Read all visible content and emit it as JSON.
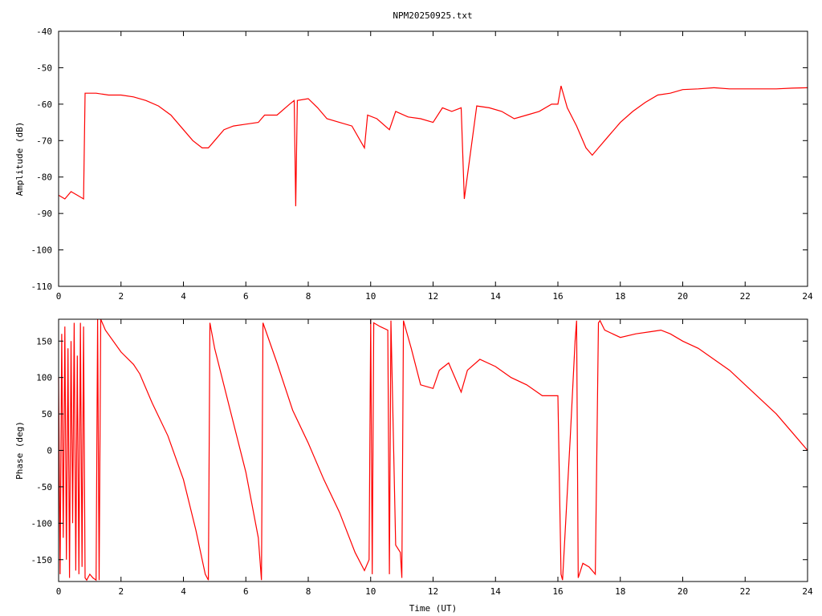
{
  "title": "NPM20250925.txt",
  "colors": {
    "trace": "#ff0000",
    "axes": "#000000",
    "background": "#ffffff"
  },
  "chart_data": [
    {
      "type": "line",
      "title": "NPM20250925.txt",
      "xlabel": "",
      "ylabel": "Amplitude (dB)",
      "xlim": [
        0,
        24
      ],
      "ylim": [
        -110,
        -40
      ],
      "x_ticks": [
        0,
        2,
        4,
        6,
        8,
        10,
        12,
        14,
        16,
        18,
        20,
        22,
        24
      ],
      "y_ticks": [
        -110,
        -100,
        -90,
        -80,
        -70,
        -60,
        -50,
        -40
      ],
      "grid": false,
      "series": [
        {
          "x": [
            0,
            0.2,
            0.4,
            0.6,
            0.8,
            0.85,
            0.9,
            1.2,
            1.6,
            2.0,
            2.4,
            2.8,
            3.2,
            3.6,
            4.0,
            4.3,
            4.6,
            4.8,
            5.0,
            5.3,
            5.6,
            6.0,
            6.4,
            6.6,
            7.0,
            7.4,
            7.55,
            7.6,
            7.65,
            8.0,
            8.3,
            8.6,
            9.0,
            9.4,
            9.8,
            9.9,
            10.2,
            10.6,
            10.8,
            11.2,
            11.6,
            12.0,
            12.3,
            12.6,
            12.9,
            13.0,
            13.4,
            13.8,
            14.2,
            14.6,
            15.0,
            15.4,
            15.8,
            16.0,
            16.1,
            16.3,
            16.6,
            16.9,
            17.1,
            17.3,
            17.6,
            18.0,
            18.4,
            18.8,
            19.2,
            19.6,
            20.0,
            20.5,
            21.0,
            21.5,
            22.0,
            22.5,
            23.0,
            23.5,
            24.0
          ],
          "values": [
            -85,
            -86,
            -84,
            -85,
            -86,
            -57,
            -57,
            -57,
            -57.5,
            -57.5,
            -58,
            -59,
            -60.5,
            -63,
            -67,
            -70,
            -72,
            -72,
            -70,
            -67,
            -66,
            -65.5,
            -65,
            -63,
            -63,
            -60,
            -59,
            -88,
            -59,
            -58.5,
            -61,
            -64,
            -65,
            -66,
            -72,
            -63,
            -64,
            -67,
            -62,
            -63.5,
            -64,
            -65,
            -61,
            -62,
            -61,
            -86,
            -60.5,
            -61,
            -62,
            -64,
            -63,
            -62,
            -60,
            -60,
            -55,
            -61,
            -66,
            -72,
            -74,
            -72,
            -69,
            -65,
            -62,
            -59.5,
            -57.5,
            -57,
            -56,
            -55.8,
            -55.5,
            -55.8,
            -55.8,
            -55.8,
            -55.8,
            -55.6,
            -55.5
          ]
        }
      ]
    },
    {
      "type": "line",
      "title": "",
      "xlabel": "Time (UT)",
      "ylabel": "Phase (deg)",
      "xlim": [
        0,
        24
      ],
      "ylim": [
        -180,
        180
      ],
      "x_ticks": [
        0,
        2,
        4,
        6,
        8,
        10,
        12,
        14,
        16,
        18,
        20,
        22,
        24
      ],
      "y_ticks": [
        -150,
        -100,
        -50,
        0,
        50,
        100,
        150
      ],
      "grid": false,
      "series": [
        {
          "x": [
            0,
            0.05,
            0.1,
            0.15,
            0.2,
            0.25,
            0.3,
            0.35,
            0.4,
            0.45,
            0.5,
            0.55,
            0.6,
            0.65,
            0.7,
            0.75,
            0.8,
            0.85,
            0.9,
            1.0,
            1.1,
            1.2,
            1.25,
            1.3,
            1.35,
            1.5,
            2.0,
            2.4,
            2.6,
            3.0,
            3.5,
            4.0,
            4.4,
            4.7,
            4.8,
            4.85,
            5.0,
            5.5,
            6.0,
            6.4,
            6.5,
            6.55,
            7.0,
            7.5,
            8.0,
            8.5,
            9.0,
            9.5,
            9.8,
            9.95,
            10.0,
            10.05,
            10.1,
            10.3,
            10.55,
            10.6,
            10.65,
            10.8,
            10.95,
            11.0,
            11.05,
            11.3,
            11.6,
            12.0,
            12.2,
            12.5,
            12.9,
            13.1,
            13.5,
            14.0,
            14.5,
            15.0,
            15.5,
            16.0,
            16.1,
            16.15,
            16.4,
            16.55,
            16.6,
            16.65,
            16.8,
            17.0,
            17.2,
            17.3,
            17.35,
            17.5,
            18.0,
            18.5,
            19.0,
            19.3,
            19.6,
            20.0,
            20.5,
            21.0,
            21.5,
            22.0,
            22.5,
            23.0,
            23.5,
            24.0
          ],
          "values": [
            100,
            -170,
            160,
            -120,
            170,
            -150,
            140,
            -175,
            150,
            -100,
            175,
            -165,
            130,
            -170,
            175,
            -160,
            170,
            -175,
            -178,
            -170,
            -175,
            -178,
            180,
            -178,
            180,
            165,
            135,
            118,
            105,
            65,
            20,
            -40,
            -110,
            -170,
            -178,
            175,
            140,
            55,
            -30,
            -120,
            -178,
            175,
            120,
            55,
            10,
            -40,
            -85,
            -140,
            -165,
            -150,
            180,
            -170,
            175,
            170,
            165,
            -170,
            178,
            -130,
            -140,
            -175,
            178,
            140,
            90,
            85,
            110,
            120,
            80,
            110,
            125,
            115,
            100,
            90,
            75,
            75,
            -170,
            -178,
            20,
            150,
            178,
            -175,
            -155,
            -160,
            -170,
            175,
            178,
            165,
            155,
            160,
            163,
            165,
            160,
            150,
            140,
            125,
            110,
            90,
            70,
            50,
            25,
            0
          ]
        }
      ]
    }
  ]
}
